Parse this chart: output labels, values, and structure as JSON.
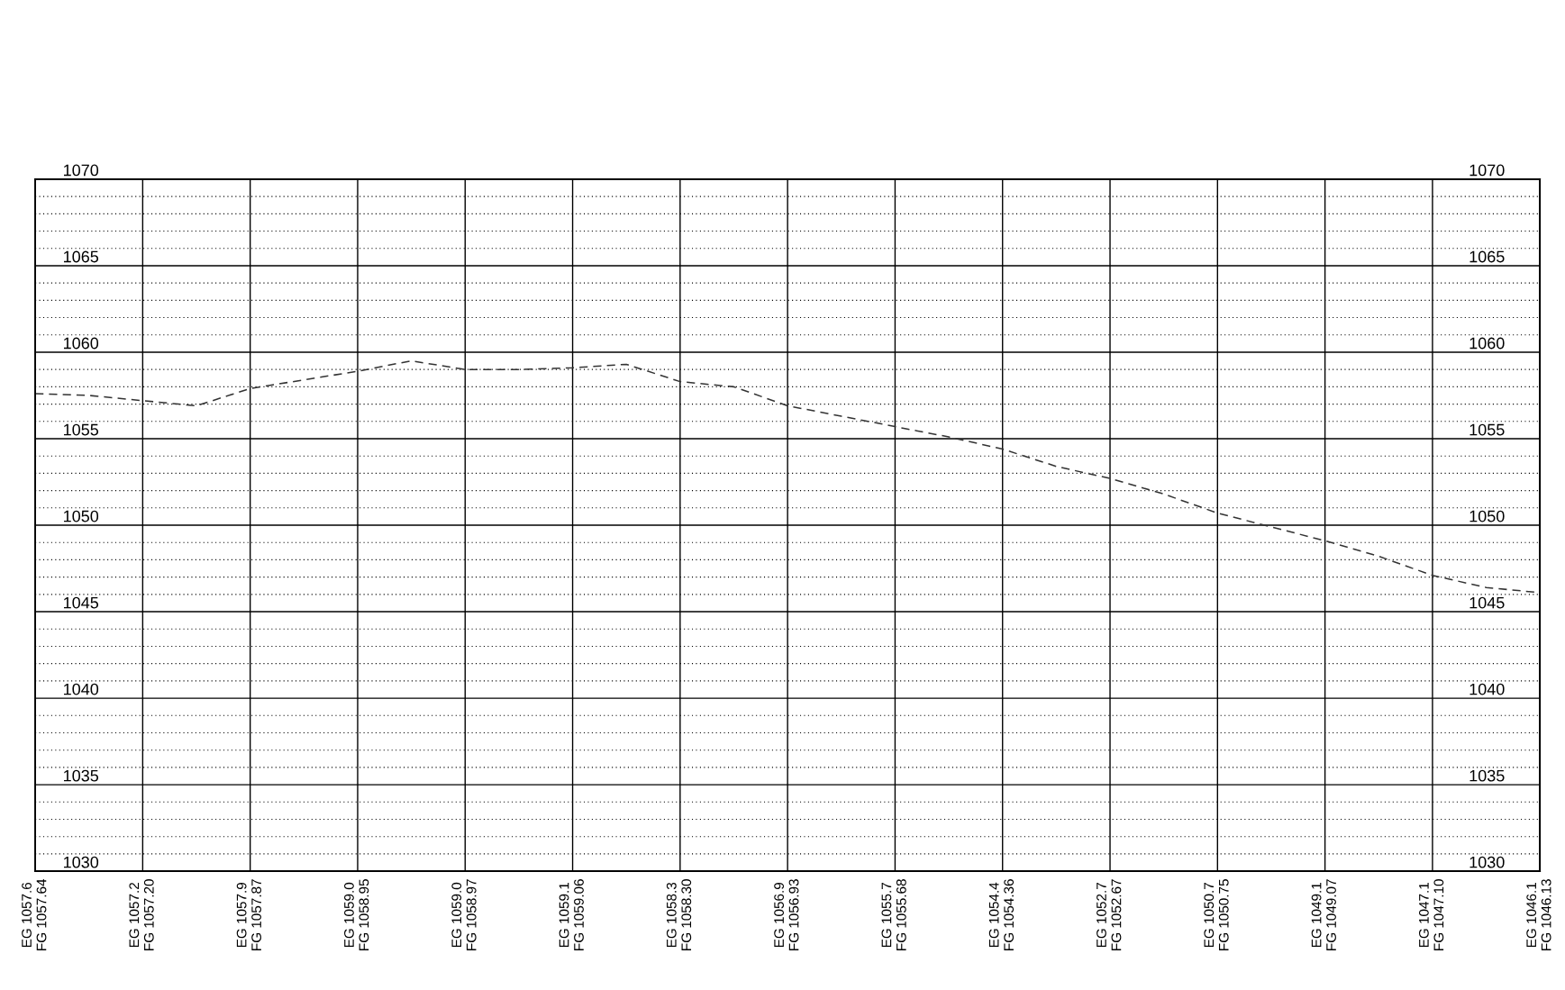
{
  "chart_data": {
    "type": "line",
    "categories": [
      "EG 1057.6\nFG 1057.64",
      null,
      "EG 1057.2\nFG 1057.20",
      null,
      "EG 1057.9\nFG 1057.87",
      null,
      "EG 1059.0\nFG 1058.95",
      null,
      "EG 1059.0\nFG 1058.97",
      null,
      "EG 1059.1\nFG 1059.06",
      null,
      "EG 1058.3\nFG 1058.30",
      null,
      "EG 1056.9\nFG 1056.93",
      null,
      "EG 1055.7\nFG 1055.68",
      null,
      "EG 1054.4\nFG 1054.36",
      null,
      "EG 1052.7\nFG 1052.67",
      null,
      "EG 1050.7\nFG 1050.75",
      null,
      "EG 1049.1\nFG 1049.07",
      null,
      "EG 1047.1\nFG 1047.10",
      null,
      "EG 1046.1\nFG 1046.13"
    ],
    "series": [
      {
        "color": "#333333",
        "line_style": "dashed",
        "values": [
          1057.6,
          1057.5,
          1057.2,
          1056.9,
          1057.9,
          1058.4,
          1058.9,
          1059.5,
          1059.0,
          1059.0,
          1059.1,
          1059.3,
          1058.3,
          1058.0,
          1056.9,
          1056.3,
          1055.7,
          1055.1,
          1054.4,
          1053.4,
          1052.7,
          1051.8,
          1050.7,
          1049.9,
          1049.1,
          1048.2,
          1047.1,
          1046.4,
          1046.1
        ]
      }
    ],
    "ylim": [
      1030,
      1070
    ],
    "yticks": [
      1030,
      1035,
      1040,
      1045,
      1050,
      1055,
      1060,
      1065,
      1070
    ],
    "y2lim": [
      1030,
      1070
    ],
    "y2ticks": [
      1030,
      1035,
      1040,
      1045,
      1050,
      1055,
      1060,
      1065,
      1070
    ],
    "grid": true,
    "marker": "none"
  }
}
